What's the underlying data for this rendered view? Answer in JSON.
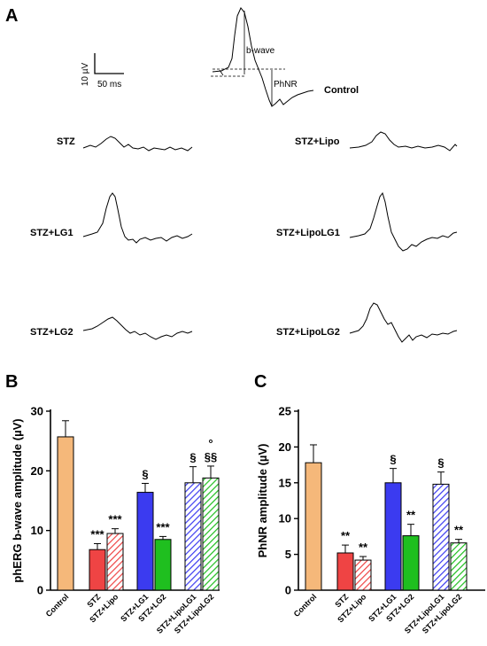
{
  "panels": {
    "a": "A",
    "b": "B",
    "c": "C"
  },
  "panel_a": {
    "scale_y": "10 µV",
    "scale_x": "50 ms",
    "bwave_label": "b-wave",
    "phnr_label": "PhNR",
    "traces": {
      "control": "Control",
      "stz": "STZ",
      "stz_lipo": "STZ+Lipo",
      "stz_lg1": "STZ+LG1",
      "stz_lipolg1": "STZ+LipoLG1",
      "stz_lg2": "STZ+LG2",
      "stz_lipolg2": "STZ+LipoLG2"
    }
  },
  "colors": {
    "Control": "#f5b87a",
    "STZ": "#ef4444",
    "STZ+Lipo": "#ef4444",
    "STZ+LG1": "#3b3bf0",
    "STZ+LG2": "#1fbf1f",
    "STZ+LipoLG1": "#3b3bf0",
    "STZ+LipoLG2": "#1fbf1f"
  },
  "chart_data": [
    {
      "type": "bar",
      "panel": "B",
      "ylabel": "phERG b-wave amplitude (µV)",
      "ylim": [
        0,
        30
      ],
      "yticks": [
        0,
        10,
        20,
        30
      ],
      "categories": [
        "Control",
        "STZ",
        "STZ+Lipo",
        "STZ+LG1",
        "STZ+LG2",
        "STZ+LipoLG1",
        "STZ+LipoLG2"
      ],
      "values": [
        25.7,
        6.8,
        9.5,
        16.4,
        8.5,
        18.0,
        18.8
      ],
      "errors": [
        2.7,
        1.0,
        0.8,
        1.5,
        0.5,
        2.7,
        2.0
      ],
      "hatched": [
        false,
        false,
        true,
        false,
        false,
        true,
        true
      ],
      "annotations": [
        "",
        "***",
        "***",
        "§",
        "***",
        "§",
        "§§"
      ],
      "extra_annotations": [
        "",
        "",
        "",
        "",
        "",
        "",
        "°"
      ]
    },
    {
      "type": "bar",
      "panel": "C",
      "ylabel": "PhNR amplitude (µV)",
      "ylim": [
        0,
        25
      ],
      "yticks": [
        0,
        5,
        10,
        15,
        20,
        25
      ],
      "categories": [
        "Control",
        "STZ",
        "STZ+Lipo",
        "STZ+LG1",
        "STZ+LG2",
        "STZ+LipoLG1",
        "STZ+LipoLG2"
      ],
      "values": [
        17.8,
        5.2,
        4.2,
        15.0,
        7.6,
        14.8,
        6.6
      ],
      "errors": [
        2.5,
        1.1,
        0.5,
        2.0,
        1.6,
        1.7,
        0.5
      ],
      "hatched": [
        false,
        false,
        true,
        false,
        false,
        true,
        true
      ],
      "annotations": [
        "",
        "**",
        "**",
        "§",
        "**",
        "§",
        "**"
      ],
      "extra_annotations": [
        "",
        "",
        "",
        "",
        "",
        "",
        ""
      ]
    }
  ]
}
